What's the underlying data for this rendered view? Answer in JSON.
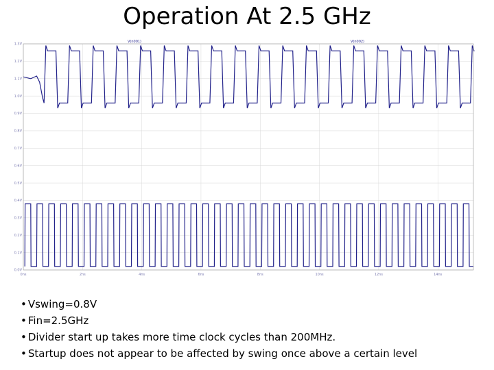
{
  "slide": {
    "title": "Operation At 2.5 GHz",
    "bullets": [
      "Vswing=0.8V",
      "Fin=2.5GHz",
      "Divider start up takes more time clock cycles than 200MHz.",
      "Startup does not appear to be affected by swing once above a certain level"
    ]
  },
  "chart_data": {
    "type": "line",
    "legend_labels": [
      "V(n001)",
      "V(n002)"
    ],
    "y_tick_labels": [
      "0.0V",
      "0.1V",
      "0.2V",
      "0.3V",
      "0.4V",
      "0.5V",
      "0.6V",
      "0.7V",
      "0.8V",
      "0.9V",
      "1.0V",
      "1.1V",
      "1.2V",
      "1.3V"
    ],
    "x_tick_labels": [
      "0ns",
      "2ns",
      "4ns",
      "6ns",
      "8ns",
      "10ns",
      "12ns",
      "14ns"
    ],
    "grid": true,
    "series": [
      {
        "color": "#22228a",
        "waveform": "divided_clock",
        "startup_level": 1.1,
        "low": 0.96,
        "high": 1.26,
        "first_transition_ns": 0.7,
        "period_ns": 0.8,
        "overshoot": 0.03
      },
      {
        "color": "#22228a",
        "waveform": "input_clock",
        "low": 0.02,
        "high": 0.38,
        "period_ns": 0.4,
        "t_start_ns": 0.05,
        "t_end_ns": 15.2
      }
    ],
    "x_range_ns": [
      0,
      15.2
    ],
    "y_range_v": [
      0.0,
      1.3
    ]
  }
}
